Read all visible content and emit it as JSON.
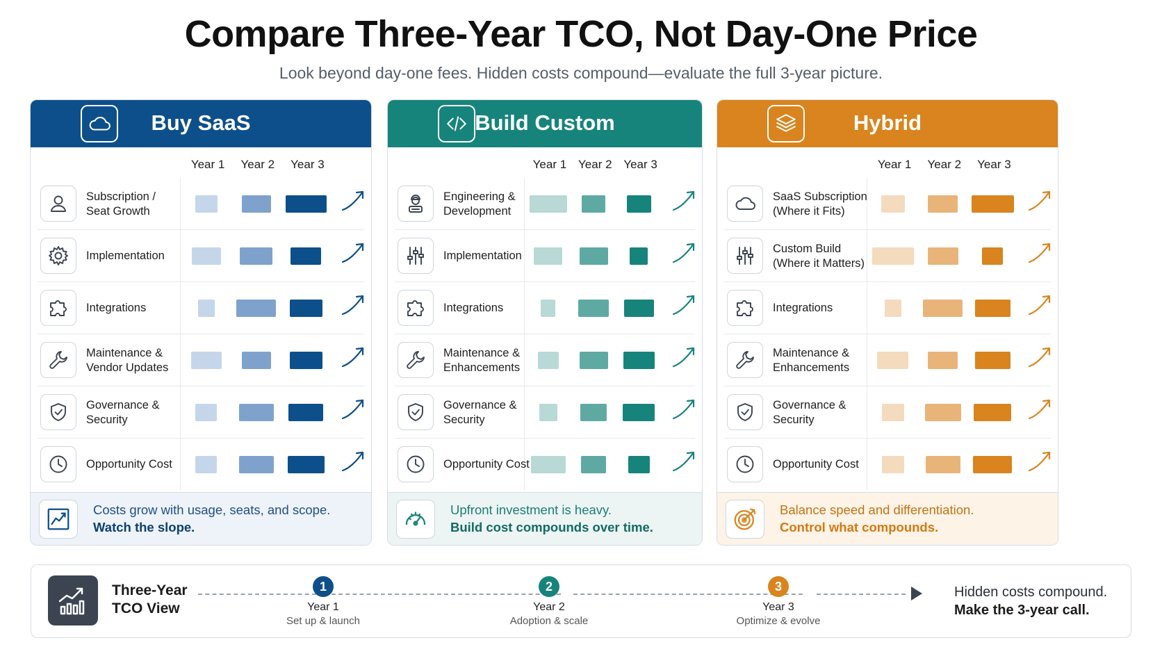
{
  "title": "Compare Three-Year TCO, Not Day-One Price",
  "subtitle": "Look beyond day-one fees. Hidden costs compound—evaluate the full 3-year picture.",
  "year_headers": [
    "Year 1",
    "Year 2",
    "Year 3"
  ],
  "cards": [
    {
      "name": "Buy SaaS",
      "icon": "cloud-icon",
      "colors": {
        "header": "#0d4f8b",
        "y1": "#c5d6ea",
        "y2": "#7fa2cc",
        "y3": "#0d4f8b",
        "arrow": "#0d4f8b",
        "footer_bg": "#eef3f9",
        "footer_text": "#1f4f86",
        "footer_bold": "#0d3f74"
      },
      "rows": [
        {
          "label": "Subscription /\nSeat Growth",
          "icon": "user-icon",
          "relative_cost": [
            0.45,
            0.58,
            0.82
          ]
        },
        {
          "label": "Implementation",
          "icon": "gear-icon",
          "relative_cost": [
            0.58,
            0.65,
            0.62
          ]
        },
        {
          "label": "Integrations",
          "icon": "puzzle-icon",
          "relative_cost": [
            0.33,
            0.8,
            0.65
          ]
        },
        {
          "label": "Maintenance &\nVendor Updates",
          "icon": "wrench-icon",
          "relative_cost": [
            0.62,
            0.58,
            0.66
          ]
        },
        {
          "label": "Governance &\nSecurity",
          "icon": "shield-icon",
          "relative_cost": [
            0.43,
            0.7,
            0.7
          ]
        },
        {
          "label": "Opportunity Cost",
          "icon": "clock-icon",
          "relative_cost": [
            0.43,
            0.7,
            0.74
          ]
        }
      ],
      "footer": {
        "line1": "Costs grow with usage, seats, and scope.",
        "line2": "Watch the slope.",
        "icon": "trend-chart-icon"
      }
    },
    {
      "name": "Build Custom",
      "icon": "code-icon",
      "colors": {
        "header": "#17847b",
        "y1": "#b8d9d6",
        "y2": "#5eaaa3",
        "y3": "#17847b",
        "arrow": "#17847b",
        "footer_bg": "#ecf5f4",
        "footer_text": "#1f7d75",
        "footer_bold": "#146b63"
      },
      "rows": [
        {
          "label": "Engineering &\nDevelopment",
          "icon": "engineer-icon",
          "relative_cost": [
            0.83,
            0.52,
            0.54
          ]
        },
        {
          "label": "Implementation",
          "icon": "sliders-icon",
          "relative_cost": [
            0.62,
            0.62,
            0.4
          ]
        },
        {
          "label": "Integrations",
          "icon": "puzzle-icon",
          "relative_cost": [
            0.32,
            0.68,
            0.66
          ]
        },
        {
          "label": "Maintenance &\nEnhancements",
          "icon": "wrench-icon",
          "relative_cost": [
            0.46,
            0.62,
            0.69
          ]
        },
        {
          "label": "Governance &\nSecurity",
          "icon": "shield-icon",
          "relative_cost": [
            0.4,
            0.58,
            0.7
          ]
        },
        {
          "label": "Opportunity Cost",
          "icon": "clock-icon",
          "relative_cost": [
            0.77,
            0.55,
            0.47
          ]
        }
      ],
      "footer": {
        "line1": "Upfront investment is heavy.",
        "line2": "Build cost compounds over time.",
        "icon": "gauge-icon"
      }
    },
    {
      "name": "Hybrid",
      "icon": "layers-icon",
      "colors": {
        "header": "#d9841e",
        "y1": "#f4dbbd",
        "y2": "#e9b479",
        "y3": "#d9841e",
        "arrow": "#d9841e",
        "footer_bg": "#fdf3e7",
        "footer_text": "#c47416",
        "footer_bold": "#d27a13"
      },
      "rows": [
        {
          "label": "SaaS Subscription\n(Where it Fits)",
          "icon": "cloud-icon",
          "relative_cost": [
            0.48,
            0.6,
            0.85
          ]
        },
        {
          "label": "Custom Build\n(Where it Matters)",
          "icon": "sliders-icon",
          "relative_cost": [
            0.84,
            0.62,
            0.42
          ]
        },
        {
          "label": "Integrations",
          "icon": "puzzle-icon",
          "relative_cost": [
            0.33,
            0.8,
            0.71
          ]
        },
        {
          "label": "Maintenance &\nEnhancements",
          "icon": "wrench-icon",
          "relative_cost": [
            0.63,
            0.6,
            0.71
          ]
        },
        {
          "label": "Governance &\nSecurity",
          "icon": "shield-icon",
          "relative_cost": [
            0.44,
            0.72,
            0.75
          ]
        },
        {
          "label": "Opportunity Cost",
          "icon": "clock-icon",
          "relative_cost": [
            0.44,
            0.7,
            0.78
          ]
        }
      ],
      "footer": {
        "line1": "Balance speed and differentiation.",
        "line2": "Control what compounds.",
        "icon": "target-icon"
      }
    }
  ],
  "timeline": {
    "title": "Three-Year\nTCO View",
    "icon": "bar-chart-icon",
    "steps": [
      {
        "num": "1",
        "year": "Year 1",
        "desc": "Set up & launch",
        "color": "#0d4f8b"
      },
      {
        "num": "2",
        "year": "Year 2",
        "desc": "Adoption & scale",
        "color": "#17847b"
      },
      {
        "num": "3",
        "year": "Year 3",
        "desc": "Optimize & evolve",
        "color": "#d9841e"
      }
    ],
    "end_line1": "Hidden costs compound.",
    "end_line2": "Make the 3-year call."
  }
}
